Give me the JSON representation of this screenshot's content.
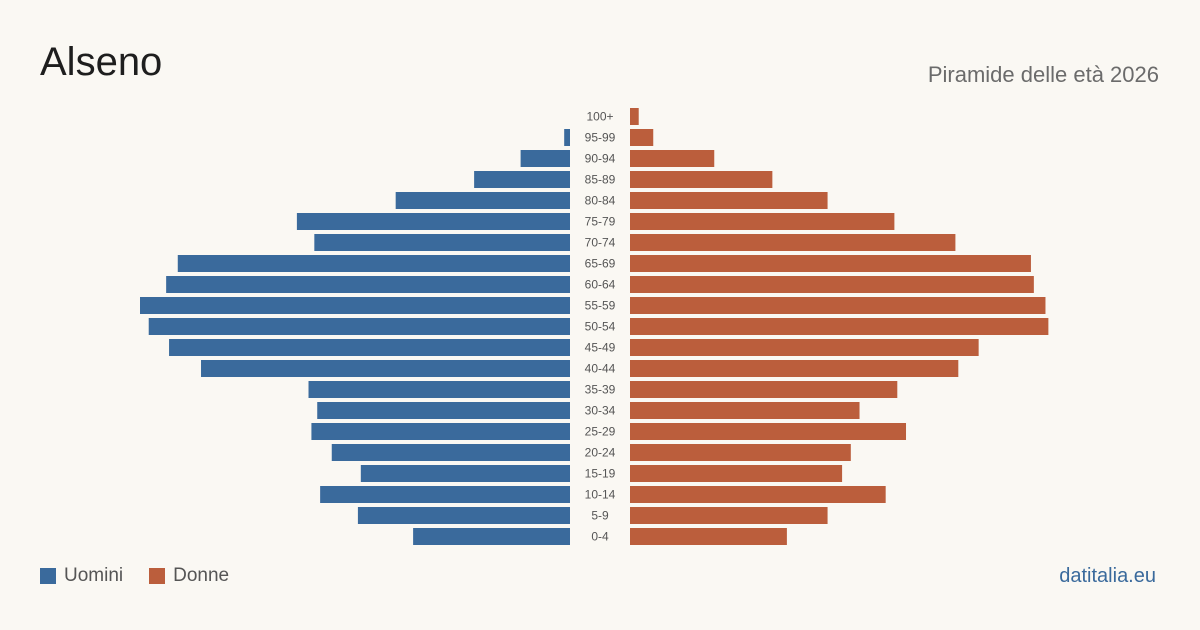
{
  "header": {
    "title": "Alseno",
    "subtitle": "Piramide delle età 2026"
  },
  "legend": {
    "male_label": "Uomini",
    "female_label": "Donne"
  },
  "footer": {
    "source": "datitalia.eu"
  },
  "colors": {
    "male": "#3a6a9c",
    "female": "#bb5e3c"
  },
  "chart_data": {
    "type": "bar",
    "orientation": "horizontal-pyramid",
    "categories": [
      "100+",
      "95-99",
      "90-94",
      "85-89",
      "80-84",
      "75-79",
      "70-74",
      "65-69",
      "60-64",
      "55-59",
      "50-54",
      "45-49",
      "40-44",
      "35-39",
      "30-34",
      "25-29",
      "20-24",
      "15-19",
      "10-14",
      "5-9",
      "0-4"
    ],
    "series": [
      {
        "name": "Uomini",
        "values": [
          0,
          2,
          17,
          33,
          60,
          94,
          88,
          135,
          139,
          148,
          145,
          138,
          127,
          90,
          87,
          89,
          82,
          72,
          86,
          73,
          54
        ]
      },
      {
        "name": "Donne",
        "values": [
          3,
          8,
          29,
          49,
          68,
          91,
          112,
          138,
          139,
          143,
          144,
          120,
          113,
          92,
          79,
          95,
          76,
          73,
          88,
          68,
          54
        ]
      }
    ],
    "grid": false,
    "legend_position": "bottom-left"
  }
}
